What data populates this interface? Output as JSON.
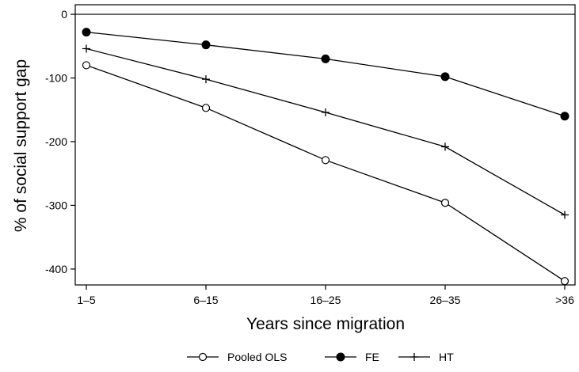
{
  "chart_data": {
    "type": "line",
    "title": "",
    "xlabel": "Years since migration",
    "ylabel": "% of social support gap",
    "categories": [
      "1–5",
      "6–15",
      "16–25",
      "26–35",
      ">36"
    ],
    "ylim": [
      -425,
      15
    ],
    "yticks": [
      0,
      -100,
      -200,
      -300,
      -400
    ],
    "ytick_labels": [
      "0",
      "-100",
      "-200",
      "-300",
      "-400"
    ],
    "reference_line": 0,
    "grid": false,
    "legend_position": "bottom",
    "series": [
      {
        "name": "Pooled OLS",
        "marker": "hollow-circle",
        "values": [
          -80,
          -147,
          -229,
          -296,
          -419
        ]
      },
      {
        "name": "FE",
        "marker": "filled-circle",
        "values": [
          -28,
          -48,
          -70,
          -98,
          -160
        ]
      },
      {
        "name": "HT",
        "marker": "plus",
        "values": [
          -54,
          -102,
          -154,
          -208,
          -315
        ]
      }
    ]
  }
}
